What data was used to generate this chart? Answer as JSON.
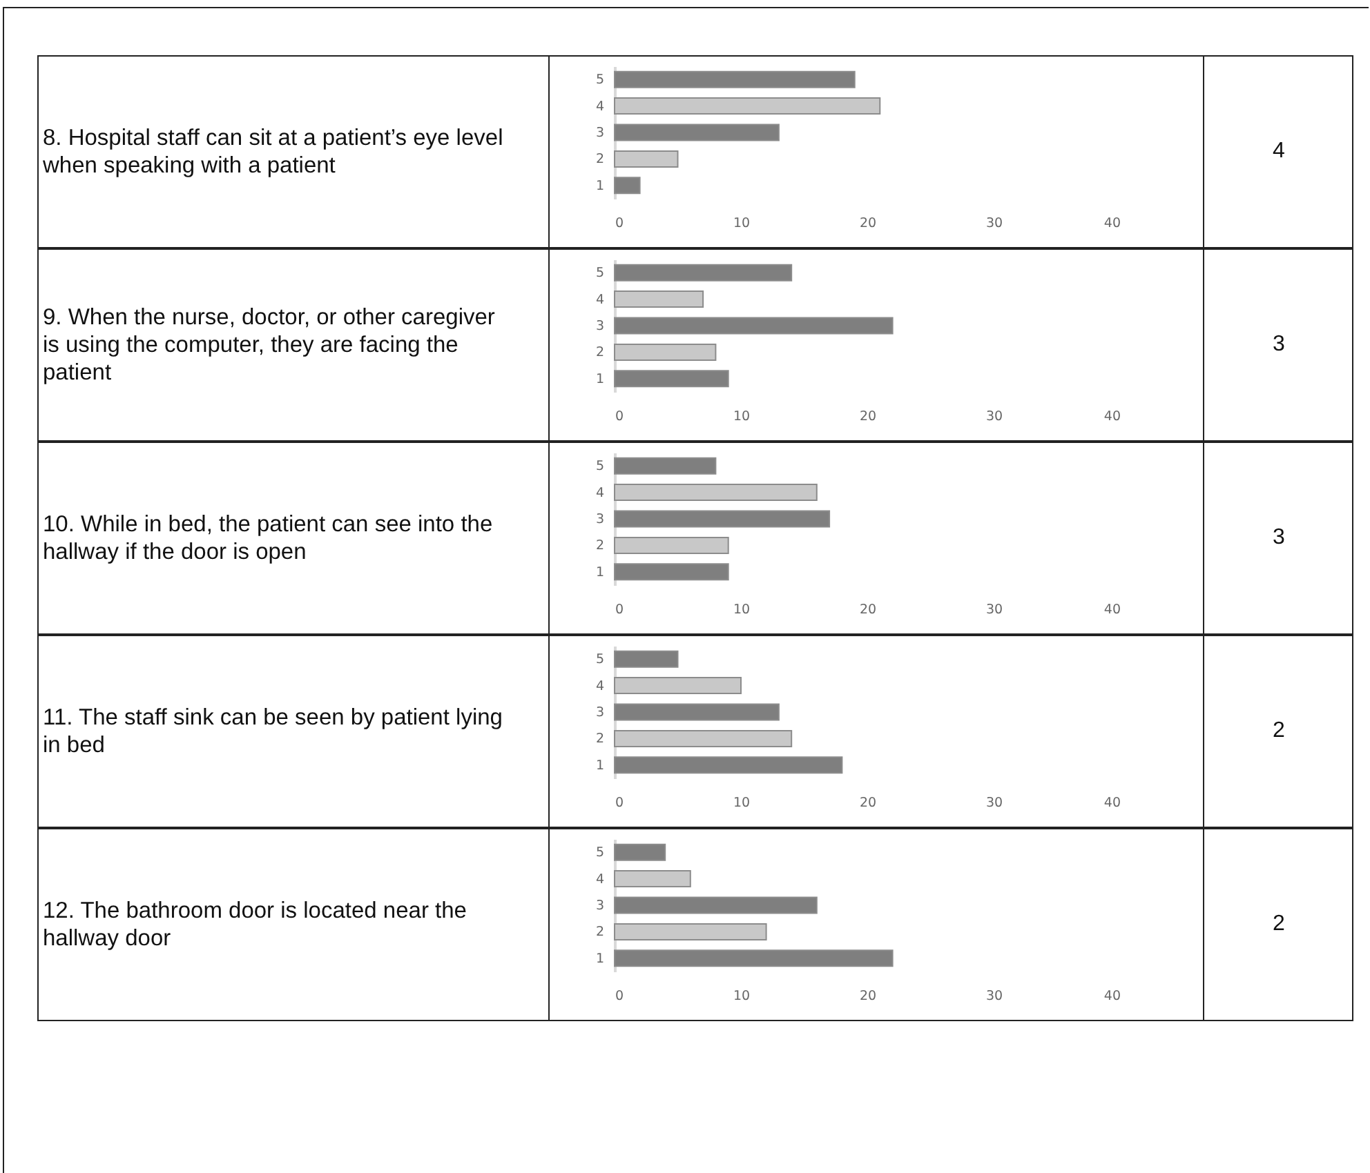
{
  "chart_data": [
    {
      "type": "bar",
      "orientation": "horizontal",
      "title": "8. Hospital staff can sit at a patient’s eye level when speaking with a patient",
      "categories": [
        "5",
        "4",
        "3",
        "2",
        "1"
      ],
      "values": [
        19,
        21,
        13,
        5,
        2
      ],
      "colors": [
        "#7f7f7f",
        "#c8c8c8",
        "#7f7f7f",
        "#c8c8c8",
        "#7f7f7f"
      ],
      "xlim": [
        0,
        40
      ],
      "xticks": [
        0,
        10,
        20,
        30,
        40
      ],
      "annotations": [
        "4"
      ]
    },
    {
      "type": "bar",
      "orientation": "horizontal",
      "title": "9. When the nurse, doctor, or other caregiver is using the computer, they are facing the patient",
      "categories": [
        "5",
        "4",
        "3",
        "2",
        "1"
      ],
      "values": [
        14,
        7,
        22,
        8,
        9
      ],
      "colors": [
        "#7f7f7f",
        "#c8c8c8",
        "#7f7f7f",
        "#c8c8c8",
        "#7f7f7f"
      ],
      "xlim": [
        0,
        40
      ],
      "xticks": [
        0,
        10,
        20,
        30,
        40
      ],
      "annotations": [
        "3"
      ]
    },
    {
      "type": "bar",
      "orientation": "horizontal",
      "title": "10. While in bed, the patient can see into the hallway if the door is open",
      "categories": [
        "5",
        "4",
        "3",
        "2",
        "1"
      ],
      "values": [
        8,
        16,
        17,
        9,
        9
      ],
      "colors": [
        "#7f7f7f",
        "#c8c8c8",
        "#7f7f7f",
        "#c8c8c8",
        "#7f7f7f"
      ],
      "xlim": [
        0,
        40
      ],
      "xticks": [
        0,
        10,
        20,
        30,
        40
      ],
      "annotations": [
        "3"
      ]
    },
    {
      "type": "bar",
      "orientation": "horizontal",
      "title": "11. The staff sink can be seen by patient lying in bed",
      "categories": [
        "5",
        "4",
        "3",
        "2",
        "1"
      ],
      "values": [
        5,
        10,
        13,
        14,
        18
      ],
      "colors": [
        "#7f7f7f",
        "#c8c8c8",
        "#7f7f7f",
        "#c8c8c8",
        "#7f7f7f"
      ],
      "xlim": [
        0,
        40
      ],
      "xticks": [
        0,
        10,
        20,
        30,
        40
      ],
      "annotations": [
        "2"
      ]
    },
    {
      "type": "bar",
      "orientation": "horizontal",
      "title": "12. The bathroom door is located near the hallway door",
      "categories": [
        "5",
        "4",
        "3",
        "2",
        "1"
      ],
      "values": [
        4,
        6,
        16,
        12,
        22
      ],
      "colors": [
        "#7f7f7f",
        "#c8c8c8",
        "#7f7f7f",
        "#c8c8c8",
        "#7f7f7f"
      ],
      "xlim": [
        0,
        40
      ],
      "xticks": [
        0,
        10,
        20,
        30,
        40
      ],
      "annotations": [
        "2"
      ]
    }
  ]
}
